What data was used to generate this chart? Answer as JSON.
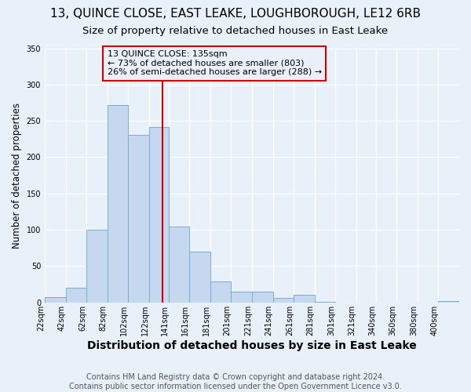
{
  "title": "13, QUINCE CLOSE, EAST LEAKE, LOUGHBOROUGH, LE12 6RB",
  "subtitle": "Size of property relative to detached houses in East Leake",
  "xlabel": "Distribution of detached houses by size in East Leake",
  "ylabel": "Number of detached properties",
  "footer": "Contains HM Land Registry data © Crown copyright and database right 2024.\nContains public sector information licensed under the Open Government Licence v3.0.",
  "annotation_line1": "13 QUINCE CLOSE: 135sqm",
  "annotation_line2": "← 73% of detached houses are smaller (803)",
  "annotation_line3": "26% of semi-detached houses are larger (288) →",
  "property_line_x": 135,
  "bar_edges": [
    22,
    42,
    62,
    82,
    102,
    122,
    141,
    161,
    181,
    201,
    221,
    241,
    261,
    281,
    301,
    321,
    340,
    360,
    380,
    400,
    420
  ],
  "bar_heights": [
    7,
    20,
    100,
    272,
    231,
    241,
    105,
    70,
    29,
    15,
    15,
    6,
    11,
    1,
    0,
    0,
    0,
    0,
    0,
    2
  ],
  "bar_color": "#c5d8f0",
  "bar_edge_color": "#7aadd4",
  "bg_color": "#e8f0fa",
  "grid_color": "#ffffff",
  "vline_color": "#cc0000",
  "box_edge_color": "#cc0000",
  "ylim": [
    0,
    350
  ],
  "yticks": [
    0,
    50,
    100,
    150,
    200,
    250,
    300,
    350
  ],
  "title_fontsize": 11,
  "subtitle_fontsize": 9.5,
  "xlabel_fontsize": 10,
  "ylabel_fontsize": 8.5,
  "tick_fontsize": 7,
  "annotation_fontsize": 8,
  "footer_fontsize": 7
}
